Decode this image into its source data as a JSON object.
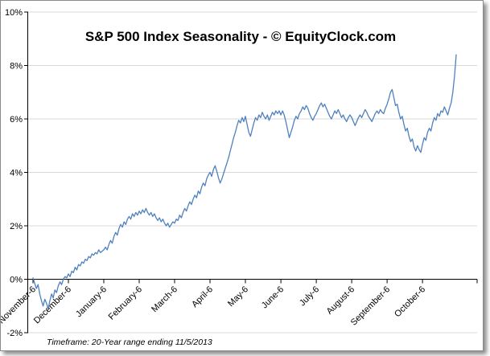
{
  "chart_data": {
    "type": "line",
    "title": "S&P 500 Index Seasonality - © EquityClock.com",
    "footnote": "Timeframe: 20-Year range ending 11/5/2013",
    "x_labels": [
      "November-6",
      "December-6",
      "January-6",
      "February-6",
      "March-6",
      "April-6",
      "May-6",
      "June-6",
      "July-6",
      "August-6",
      "September-6",
      "October-6"
    ],
    "y_tick_labels": [
      "-2%",
      "0%",
      "2%",
      "4%",
      "6%",
      "8%",
      "10%"
    ],
    "ylim": [
      -2,
      10
    ],
    "y_tick_step": 2,
    "axis_crosses_at": 0,
    "grid": true,
    "legend": "none",
    "line_color": "#4f81bd",
    "gridline_color": "#d8d8d8",
    "axis_color": "#000000",
    "points_per_month": 21,
    "values": [
      0.05,
      -0.15,
      -0.35,
      -0.2,
      -0.55,
      -0.8,
      -1.0,
      -0.75,
      -0.9,
      -1.1,
      -0.8,
      -0.55,
      -0.7,
      -0.4,
      -0.5,
      -0.25,
      -0.1,
      -0.2,
      0.0,
      0.1,
      0.05,
      0.2,
      0.1,
      0.3,
      0.25,
      0.45,
      0.35,
      0.55,
      0.5,
      0.65,
      0.6,
      0.75,
      0.7,
      0.85,
      0.8,
      0.95,
      0.9,
      1.0,
      0.95,
      1.1,
      1.0,
      1.05,
      1.1,
      1.2,
      1.1,
      1.3,
      1.45,
      1.35,
      1.6,
      1.75,
      1.65,
      1.9,
      2.05,
      1.95,
      2.15,
      2.05,
      2.25,
      2.35,
      2.25,
      2.45,
      2.35,
      2.5,
      2.4,
      2.55,
      2.45,
      2.6,
      2.5,
      2.65,
      2.5,
      2.4,
      2.5,
      2.35,
      2.45,
      2.3,
      2.2,
      2.3,
      2.15,
      2.25,
      2.1,
      2.0,
      2.1,
      1.95,
      2.05,
      2.15,
      2.1,
      2.25,
      2.2,
      2.4,
      2.3,
      2.5,
      2.65,
      2.55,
      2.75,
      2.9,
      2.8,
      3.0,
      3.15,
      3.05,
      3.3,
      3.2,
      3.45,
      3.6,
      3.5,
      3.75,
      3.9,
      4.0,
      3.85,
      4.1,
      4.25,
      4.05,
      3.8,
      3.6,
      3.75,
      3.95,
      4.15,
      4.35,
      4.55,
      4.8,
      5.05,
      5.3,
      5.5,
      5.75,
      5.95,
      5.85,
      6.05,
      5.9,
      6.1,
      5.8,
      5.5,
      5.35,
      5.6,
      5.85,
      6.05,
      5.95,
      6.15,
      6.05,
      6.25,
      6.1,
      6.0,
      6.15,
      5.95,
      6.1,
      6.25,
      6.15,
      6.3,
      6.2,
      6.3,
      6.15,
      6.3,
      6.15,
      5.9,
      5.6,
      5.3,
      5.5,
      5.7,
      5.95,
      6.1,
      6.0,
      6.2,
      6.3,
      6.45,
      6.35,
      6.5,
      6.4,
      6.2,
      6.05,
      5.95,
      6.1,
      6.2,
      6.35,
      6.5,
      6.6,
      6.45,
      6.55,
      6.4,
      6.25,
      6.1,
      6.0,
      6.15,
      6.3,
      6.2,
      6.35,
      6.2,
      6.05,
      6.15,
      6.0,
      5.9,
      6.05,
      6.15,
      6.05,
      5.9,
      5.75,
      5.9,
      6.05,
      6.15,
      6.05,
      6.2,
      6.35,
      6.25,
      6.1,
      6.0,
      5.9,
      6.05,
      6.2,
      6.3,
      6.2,
      6.35,
      6.25,
      6.2,
      6.4,
      6.55,
      6.75,
      7.0,
      7.1,
      6.8,
      6.5,
      6.55,
      6.25,
      6.0,
      6.1,
      5.8,
      5.55,
      5.65,
      5.35,
      5.15,
      5.25,
      4.95,
      4.8,
      5.0,
      4.85,
      4.75,
      5.05,
      5.3,
      5.2,
      5.5,
      5.65,
      5.55,
      5.85,
      6.05,
      5.95,
      6.2,
      6.1,
      6.3,
      6.25,
      6.45,
      6.3,
      6.15,
      6.4,
      6.6,
      7.0,
      7.6,
      8.4
    ]
  }
}
